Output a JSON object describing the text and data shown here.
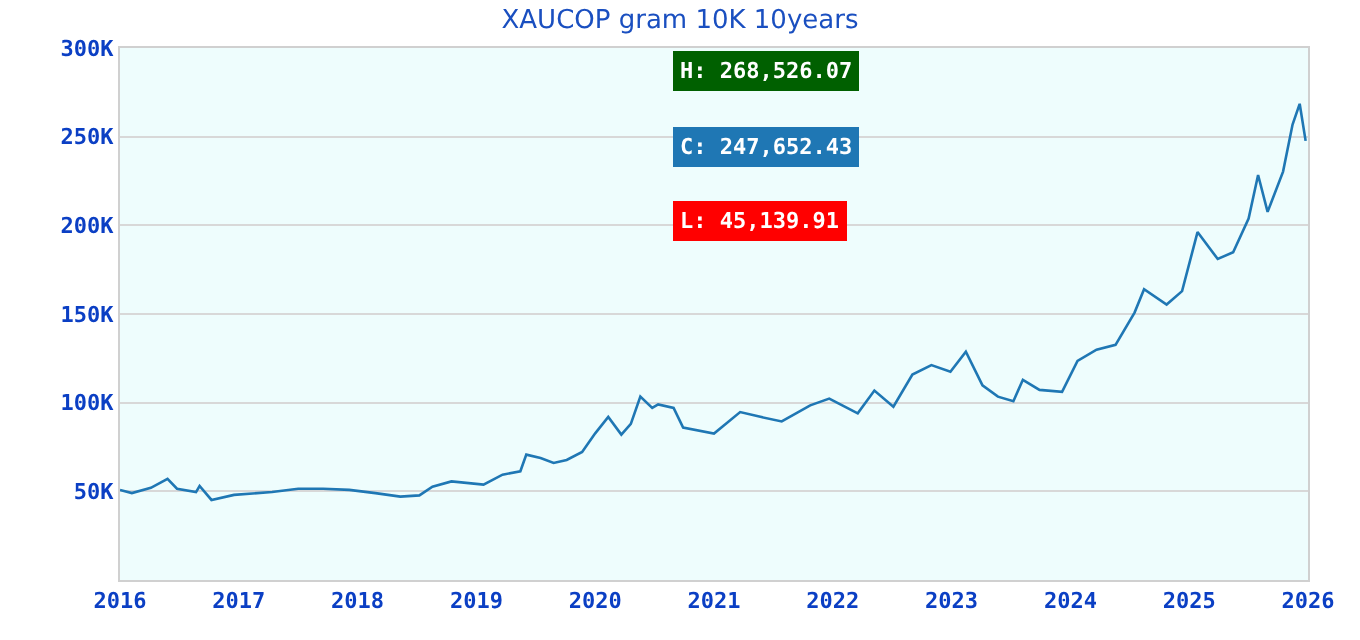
{
  "chart_data": {
    "type": "line",
    "title": "XAUCOP gram 10K 10years",
    "x": [
      2016.0,
      2016.1,
      2016.26,
      2016.4,
      2016.48,
      2016.64,
      2016.67,
      2016.77,
      2016.96,
      2017.28,
      2017.5,
      2017.71,
      2017.93,
      2018.15,
      2018.36,
      2018.52,
      2018.63,
      2018.79,
      2019.06,
      2019.22,
      2019.37,
      2019.42,
      2019.54,
      2019.65,
      2019.76,
      2019.89,
      2020.0,
      2020.11,
      2020.22,
      2020.3,
      2020.38,
      2020.48,
      2020.53,
      2020.66,
      2020.74,
      2021.0,
      2021.22,
      2021.39,
      2021.57,
      2021.81,
      2021.97,
      2022.21,
      2022.35,
      2022.51,
      2022.67,
      2022.83,
      2022.99,
      2023.12,
      2023.26,
      2023.39,
      2023.52,
      2023.6,
      2023.74,
      2023.93,
      2024.06,
      2024.22,
      2024.38,
      2024.54,
      2024.62,
      2024.81,
      2024.94,
      2025.07,
      2025.24,
      2025.37,
      2025.5,
      2025.58,
      2025.66,
      2025.79,
      2025.87,
      2025.93,
      2025.98
    ],
    "series": [
      {
        "color": "#1f77b4",
        "values": [
          50800,
          49000,
          52000,
          57000,
          51500,
          49600,
          53000,
          45140,
          48000,
          49600,
          51500,
          51500,
          50800,
          49000,
          47000,
          47700,
          52600,
          55600,
          53800,
          59400,
          61300,
          70700,
          68800,
          66000,
          67700,
          72200,
          82700,
          92000,
          82000,
          88000,
          103400,
          97000,
          99000,
          97000,
          86000,
          82600,
          94700,
          92000,
          89400,
          98500,
          102300,
          94000,
          106800,
          97700,
          115900,
          121200,
          117400,
          128800,
          109800,
          103400,
          100800,
          112900,
          107200,
          106100,
          123500,
          129900,
          132600,
          150800,
          164000,
          155300,
          162900,
          196200,
          181000,
          184800,
          203800,
          228400,
          207600,
          230300,
          256800,
          268526,
          247652
        ]
      }
    ],
    "xlim": [
      2016,
      2026
    ],
    "xticks": [
      2016,
      2017,
      2018,
      2019,
      2020,
      2021,
      2022,
      2023,
      2024,
      2025,
      2026
    ],
    "ylim": [
      0,
      300000
    ],
    "yticks": [
      {
        "value": 50000,
        "label": "50K"
      },
      {
        "value": 100000,
        "label": "100K"
      },
      {
        "value": 150000,
        "label": "150K"
      },
      {
        "value": 200000,
        "label": "200K"
      },
      {
        "value": 250000,
        "label": "250K"
      },
      {
        "value": 300000,
        "label": "300K"
      }
    ],
    "grid": "y",
    "legend": false,
    "marker": "none",
    "line_style": "solid",
    "annotations": [
      "H: 268,526.07",
      "C: 247,652.43",
      "L: 45,139.91"
    ]
  }
}
